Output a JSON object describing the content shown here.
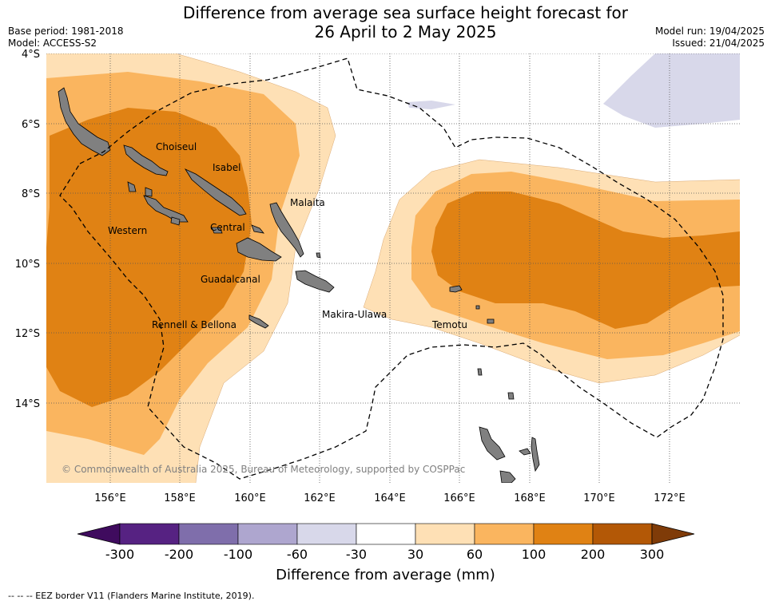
{
  "header": {
    "title_line1": "Difference from average sea surface height forecast for",
    "title_line2": "26 April to 2 May 2025",
    "base_period": "Base period: 1981-2018",
    "model": "Model: ACCESS-S2",
    "model_run": "Model run: 19/04/2025",
    "issued": "Issued: 21/04/2025"
  },
  "map": {
    "lat_ticks": [
      "4°S",
      "6°S",
      "8°S",
      "10°S",
      "12°S",
      "14°S"
    ],
    "lon_ticks": [
      "156°E",
      "158°E",
      "160°E",
      "162°E",
      "164°E",
      "166°E",
      "168°E",
      "170°E",
      "172°E"
    ],
    "province_labels": [
      "Choiseul",
      "Isabel",
      "Malaita",
      "Western",
      "Central",
      "Guadalcanal",
      "Makira-Ulawa",
      "Rennell & Bellona",
      "Temotu"
    ],
    "copyright": "© Commonwealth of Australia 2025, Bureau of Meteorology, supported by COSPPac",
    "land_color": "#808080"
  },
  "colorbar": {
    "labels": [
      "-300",
      "-200",
      "-100",
      "-60",
      "-30",
      "30",
      "60",
      "100",
      "200",
      "300"
    ],
    "colors": [
      "#3f0b5e",
      "#562282",
      "#7f6eab",
      "#aea6cf",
      "#d8d8ea",
      "#ffffff",
      "#fee0b5",
      "#fab55f",
      "#e08214",
      "#b35806",
      "#7f3b08"
    ],
    "title": "Difference from average (mm)"
  },
  "footnote": "--  --  -- EEZ border V11 (Flanders Marine Institute, 2019)."
}
